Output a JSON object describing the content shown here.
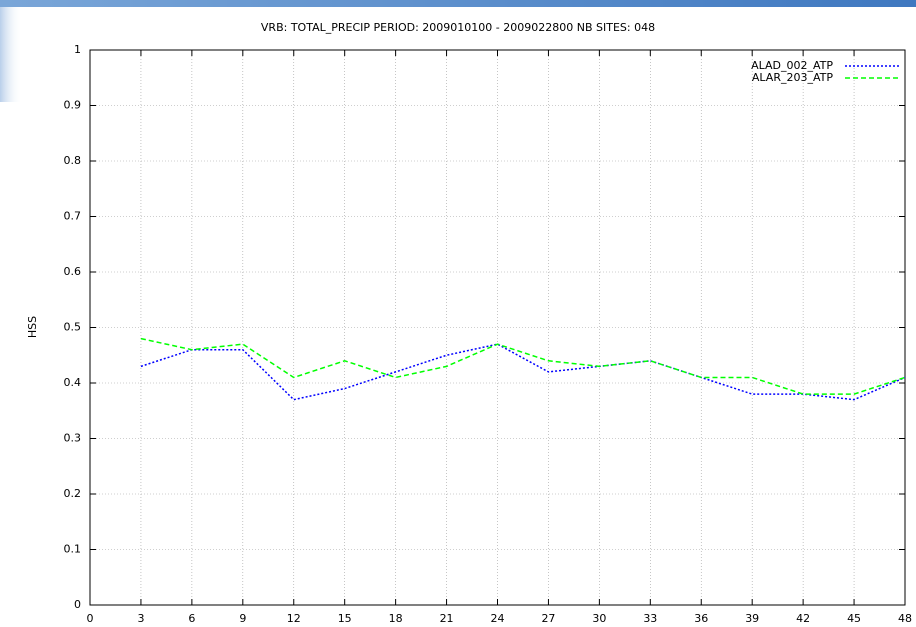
{
  "chart_data": {
    "type": "line",
    "title": "VRB: TOTAL_PRECIP PERIOD: 2009010100 - 2009022800 NB SITES: 048",
    "y_label": "HSS",
    "x": [
      3,
      6,
      9,
      12,
      15,
      18,
      21,
      24,
      27,
      30,
      33,
      36,
      39,
      42,
      45,
      48
    ],
    "series": [
      {
        "name": "ALAD_002_ATP",
        "color": "#0000ff",
        "style": "dotted",
        "values": [
          0.43,
          0.46,
          0.46,
          0.37,
          0.39,
          0.42,
          0.45,
          0.47,
          0.42,
          0.43,
          0.44,
          0.41,
          0.38,
          0.38,
          0.37,
          0.41
        ]
      },
      {
        "name": "ALAR_203_ATP",
        "color": "#00ff00",
        "style": "dashed",
        "values": [
          0.48,
          0.46,
          0.47,
          0.41,
          0.44,
          0.41,
          0.43,
          0.47,
          0.44,
          0.43,
          0.44,
          0.41,
          0.41,
          0.38,
          0.38,
          0.41
        ]
      }
    ],
    "xlim": [
      0,
      48
    ],
    "xticks": [
      0,
      3,
      6,
      9,
      12,
      15,
      18,
      21,
      24,
      27,
      30,
      33,
      36,
      39,
      42,
      45,
      48
    ],
    "ylim": [
      0,
      1
    ],
    "yticks": [
      0,
      0.1,
      0.2,
      0.3,
      0.4,
      0.5,
      0.6,
      0.7,
      0.8,
      0.9,
      1
    ],
    "grid": true,
    "legend": "top-right"
  }
}
